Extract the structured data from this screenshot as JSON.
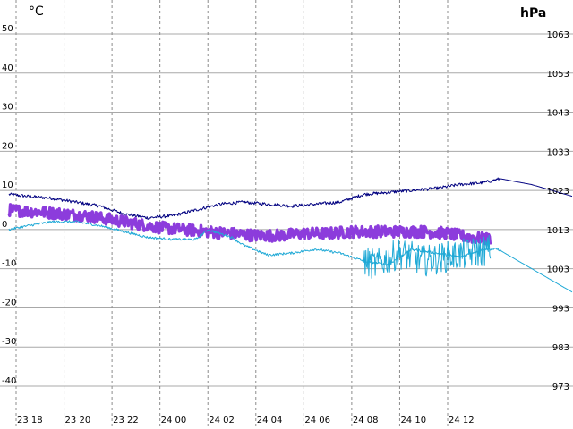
{
  "chart_data": {
    "type": "line",
    "left_unit": "°C",
    "right_unit": "hPa",
    "y_left_ticks": [
      "50",
      "40",
      "30",
      "20",
      "10",
      "0",
      "-10",
      "-20",
      "-30",
      "-40"
    ],
    "y_right_ticks": [
      "1063",
      "1053",
      "1043",
      "1033",
      "1023",
      "1013",
      "1003",
      "993",
      "983",
      "973"
    ],
    "x_ticks": [
      "23 18",
      "23 20",
      "23 22",
      "24 00",
      "24 02",
      "24 04",
      "24 06",
      "24 08",
      "24 10",
      "24 12"
    ],
    "ylim_left": [
      -45,
      55
    ],
    "ylim_right": [
      968,
      1068
    ],
    "x_start_hours": 17.7,
    "x_end_hours": 41.2,
    "grid": true,
    "series": [
      {
        "color": "#000080",
        "axis": "left",
        "noise": 0.4,
        "points": [
          [
            17.7,
            9
          ],
          [
            18.5,
            8.5
          ],
          [
            19.5,
            8
          ],
          [
            20.5,
            7
          ],
          [
            21.5,
            6
          ],
          [
            22.5,
            4
          ],
          [
            23.5,
            3
          ],
          [
            24.5,
            3.5
          ],
          [
            25.5,
            5
          ],
          [
            26.5,
            6.5
          ],
          [
            27.5,
            7
          ],
          [
            28.5,
            6.5
          ],
          [
            29.5,
            6
          ],
          [
            30.5,
            6.5
          ],
          [
            31.5,
            7
          ],
          [
            32.5,
            9
          ],
          [
            33.5,
            9.5
          ],
          [
            34.5,
            10
          ],
          [
            35.5,
            10.5
          ],
          [
            36.5,
            11.5
          ],
          [
            37.5,
            12
          ],
          [
            38.2,
            13
          ],
          [
            39.5,
            11.5
          ],
          [
            41.2,
            8.5
          ]
        ]
      },
      {
        "color": "#8c3cdc",
        "axis": "left",
        "noise": 1.5,
        "thick": true,
        "points": [
          [
            17.7,
            5
          ],
          [
            19,
            4.5
          ],
          [
            20,
            4
          ],
          [
            21,
            3.5
          ],
          [
            22,
            2.5
          ],
          [
            23,
            1.5
          ],
          [
            24,
            0.5
          ],
          [
            25,
            0
          ],
          [
            26,
            -0.5
          ],
          [
            27,
            -1
          ],
          [
            28,
            -1.5
          ],
          [
            29,
            -1.5
          ],
          [
            30,
            -1
          ],
          [
            31,
            -1
          ],
          [
            32,
            -0.5
          ],
          [
            33,
            -0.5
          ],
          [
            34,
            -0.5
          ],
          [
            35,
            -0.5
          ],
          [
            36,
            -1
          ],
          [
            37,
            -2
          ],
          [
            37.8,
            -2.5
          ]
        ]
      },
      {
        "color": "#1fa9d6",
        "axis": "left",
        "noise": 0.3,
        "points": [
          [
            17.7,
            0
          ],
          [
            18.5,
            1
          ],
          [
            19.5,
            2
          ],
          [
            20.5,
            2
          ],
          [
            21.5,
            1
          ],
          [
            22.5,
            -0.5
          ],
          [
            23.5,
            -2
          ],
          [
            24.5,
            -2.5
          ],
          [
            25.5,
            -2.5
          ],
          [
            26,
            0
          ],
          [
            27,
            -2
          ],
          [
            27.5,
            -4
          ],
          [
            28.5,
            -6.5
          ],
          [
            29.5,
            -6
          ],
          [
            30.5,
            -5
          ],
          [
            31.5,
            -6
          ],
          [
            32.5,
            -8
          ],
          [
            33.5,
            -9
          ],
          [
            34.5,
            -5
          ],
          [
            35.5,
            -6
          ],
          [
            36.5,
            -7
          ],
          [
            37.5,
            -5
          ],
          [
            38.1,
            -5
          ],
          [
            41.2,
            -16
          ]
        ]
      },
      {
        "color": "#1fa9d6",
        "axis": "left",
        "noise": 4,
        "points": [
          [
            32.5,
            -8
          ],
          [
            33,
            -9
          ],
          [
            34,
            -6
          ],
          [
            35,
            -8
          ],
          [
            36,
            -7
          ],
          [
            37,
            -6
          ],
          [
            37.8,
            -5
          ]
        ]
      }
    ]
  }
}
